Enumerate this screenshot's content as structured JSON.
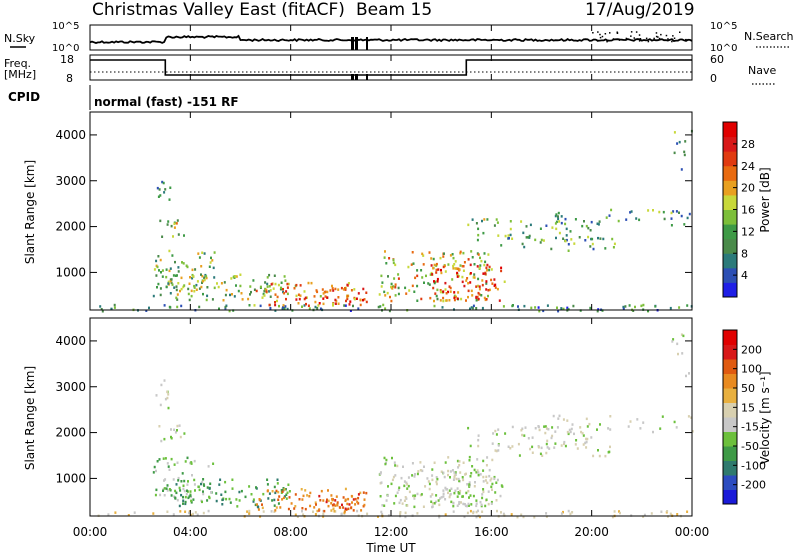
{
  "header": {
    "title": "Christmas Valley East (fitACF)",
    "beam": "Beam 15",
    "date": "17/Aug/2019"
  },
  "labels": {
    "nsky": "N.Sky",
    "freq1": "Freq.",
    "freq2": "[MHz]",
    "cpid": "CPID",
    "nsearch": "N.Search",
    "nave": "Nave",
    "cpid_value": "normal (fast) -151 RF",
    "time_axis": "Time UT"
  },
  "colors": {
    "frame": "#000000",
    "power_scale": [
      "#1f1fe6",
      "#2c4fb4",
      "#2b7a7a",
      "#4a8a4a",
      "#3e9a46",
      "#7dbf3a",
      "#c8d83a",
      "#e8a020",
      "#e86a10",
      "#e03a10",
      "#d81818",
      "#e00000"
    ],
    "velocity_scale": [
      "#1a1ad8",
      "#2c4cc0",
      "#2f7a6e",
      "#3e9a46",
      "#6cc03c",
      "#c8c8c8",
      "#d8d0b0",
      "#e8b040",
      "#e88a20",
      "#e05a10",
      "#d81818",
      "#e00000"
    ]
  },
  "chart_data": [
    {
      "type": "line",
      "title": "",
      "name": "sky-noise",
      "ylabel_left": "N.Sky",
      "ylabel_right": "N.Search",
      "yticks_left": [
        "10^5",
        "10^0"
      ],
      "yticks_right": [
        "10^5",
        "10^0"
      ],
      "x": [
        "00:00",
        "04:00",
        "08:00",
        "12:00",
        "16:00",
        "20:00",
        "00:00"
      ]
    },
    {
      "type": "line",
      "name": "frequency",
      "ylabel_left": "Freq. [MHz]",
      "ylabel_right": "Nave",
      "yticks_left": [
        "18",
        "8"
      ],
      "yticks_right": [
        "60",
        "0"
      ],
      "freq_steps_hours": [
        0,
        3,
        15,
        24
      ],
      "freq_values_mhz": [
        16,
        10,
        16
      ]
    },
    {
      "type": "heatmap",
      "name": "power",
      "ylabel": "Slant Range [km]",
      "yticks": [
        "4000",
        "3000",
        "2000",
        "1000"
      ],
      "ylim": [
        180,
        4500
      ],
      "colorbar_label": "Power [dB]",
      "colorbar_ticks": [
        "28",
        "24",
        "20",
        "16",
        "12",
        "8",
        "4"
      ],
      "colorbar_range": [
        0,
        32
      ]
    },
    {
      "type": "heatmap",
      "name": "velocity",
      "ylabel": "Slant Range [km]",
      "yticks": [
        "4000",
        "3000",
        "2000",
        "1000"
      ],
      "ylim": [
        180,
        4500
      ],
      "colorbar_label": "Velocity [m s⁻¹]",
      "colorbar_ticks": [
        "200",
        "100",
        "50",
        "15",
        "-15",
        "-50",
        "-100",
        "-200"
      ],
      "xticks": [
        "00:00",
        "04:00",
        "08:00",
        "12:00",
        "16:00",
        "20:00",
        "00:00"
      ],
      "xlabel": "Time UT"
    }
  ]
}
